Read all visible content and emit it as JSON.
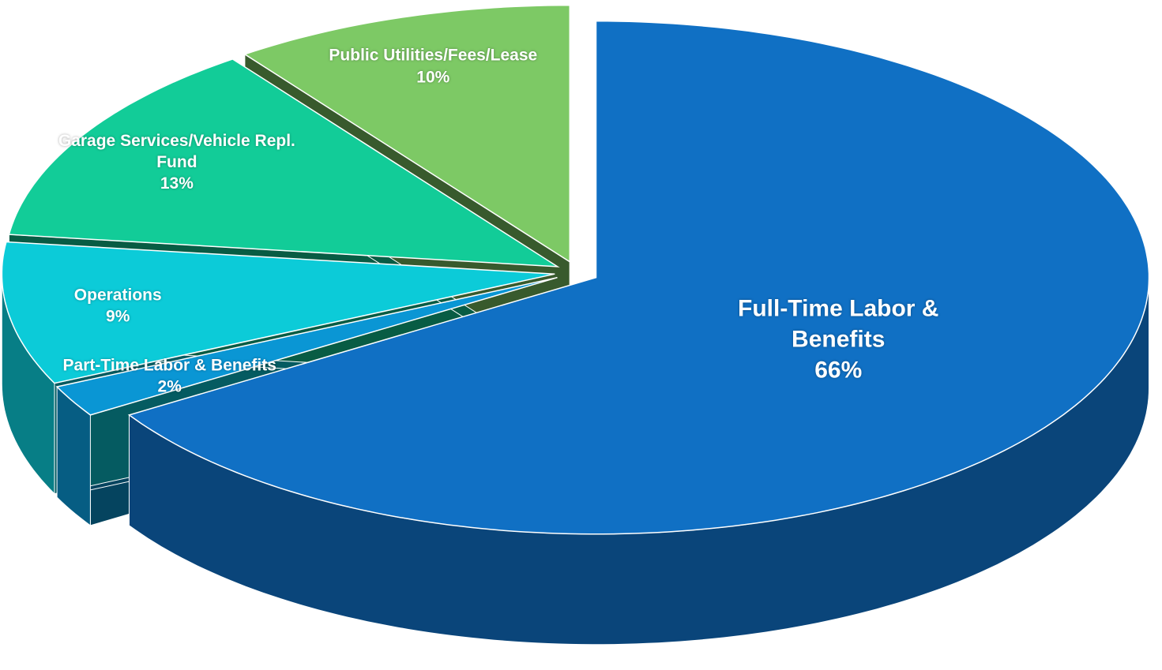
{
  "chart_data": {
    "type": "pie3d",
    "categories": [
      "Full-Time Labor & Benefits",
      "Part-Time Labor & Benefits",
      "Operations",
      "Garage Services/Vehicle Repl. Fund",
      "Public Utilities/Fees/Lease"
    ],
    "values": [
      66,
      2,
      9,
      13,
      10
    ],
    "value_labels": [
      "66%",
      "2%",
      "9%",
      "13%",
      "10%"
    ],
    "colors": [
      "#1070c4",
      "#0a96d4",
      "#0ccbd8",
      "#12cc98",
      "#7dc965"
    ]
  }
}
